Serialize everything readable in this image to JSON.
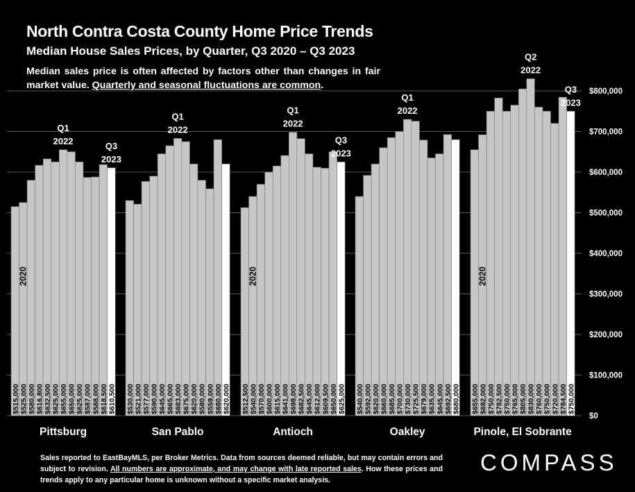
{
  "title": "North Contra Costa County Home Price Trends",
  "subtitle": "Median House Sales Prices, by Quarter, Q3 2020 – Q3 2023",
  "note": {
    "text": "Median sales price is often affected by factors other than changes in fair market value. ",
    "underlined": "Quarterly and seasonal fluctuations are common",
    "end": "."
  },
  "footer": {
    "line1": "Sales reported to EastBayMLS, per Broker Metrics. Data from sources deemed reliable, but may contain errors and subject to revision. ",
    "underlined": "All numbers are approximate, and may change with late reported sales",
    "line2": ". How these prices and trends apply to any particular home is unknown without a specific market analysis."
  },
  "logo": "COMPASS",
  "colors": {
    "background": "#000000",
    "bar": "#c6c6c6",
    "bar_latest": "#ffffff",
    "text": "#ffffff"
  },
  "chart_data": {
    "type": "bar",
    "ylim": [
      0,
      800000
    ],
    "yticks": [
      "$0",
      "$100,000",
      "$200,000",
      "$300,000",
      "$400,000",
      "$500,000",
      "$600,000",
      "$700,000",
      "$800,000"
    ],
    "ytick_values": [
      0,
      100000,
      200000,
      300000,
      400000,
      500000,
      600000,
      700000,
      800000
    ],
    "grid": true,
    "groups": [
      {
        "name": "Pittsburg",
        "values": [
          515000,
          525000,
          580000,
          616800,
          632500,
          625000,
          655000,
          650000,
          625000,
          587000,
          588000,
          618500,
          610500
        ],
        "labels": [
          "$515,000",
          "$525,000",
          "$580,000",
          "$616,800",
          "$632,500",
          "$625,000",
          "$655,000",
          "$650,000",
          "$625,000",
          "$587,000",
          "$588,000",
          "$618,500",
          "$610,500"
        ],
        "start_label": "2020",
        "annotations": [
          {
            "index": 6,
            "lines": [
              "Q1",
              "2022"
            ]
          },
          {
            "index": 12,
            "lines": [
              "Q3",
              "2023"
            ]
          }
        ]
      },
      {
        "name": "San Pablo",
        "values": [
          530000,
          521000,
          577000,
          590000,
          645000,
          665000,
          683000,
          675000,
          620000,
          580000,
          559000,
          680000,
          620000
        ],
        "labels": [
          "$530,000",
          "$521,000",
          "$577,000",
          "$590,000",
          "$645,000",
          "$665,000",
          "$683,000",
          "$675,000",
          "$620,000",
          "$580,000",
          "$559,000",
          "$680,000",
          "$620,000"
        ],
        "start_label": "",
        "annotations": [
          {
            "index": 6,
            "lines": [
              "Q1",
              "2022"
            ]
          }
        ]
      },
      {
        "name": "Antioch",
        "values": [
          512500,
          540000,
          570000,
          600000,
          615000,
          641000,
          698000,
          682500,
          645000,
          612000,
          609500,
          650000,
          625000
        ],
        "labels": [
          "$512,500",
          "$540,000",
          "$570,000",
          "$600,000",
          "$615,000",
          "$641,000",
          "$698,000",
          "$682,500",
          "$645,000",
          "$612,000",
          "$609,500",
          "$650,000",
          "$625,000"
        ],
        "start_label": "2020",
        "annotations": [
          {
            "index": 6,
            "lines": [
              "Q1",
              "2022"
            ]
          },
          {
            "index": 12,
            "lines": [
              "Q3",
              "2023"
            ]
          }
        ]
      },
      {
        "name": "Oakley",
        "values": [
          540000,
          592000,
          620000,
          660000,
          685000,
          700000,
          730000,
          725500,
          679000,
          635000,
          645000,
          692500,
          680000
        ],
        "labels": [
          "$540,000",
          "$592,000",
          "$620,000",
          "$660,000",
          "$685,000",
          "$700,000",
          "$730,000",
          "$725,500",
          "$679,000",
          "$635,000",
          "$645,000",
          "$692,500",
          "$680,000"
        ],
        "start_label": "",
        "annotations": [
          {
            "index": 6,
            "lines": [
              "Q1",
              "2022"
            ]
          }
        ]
      },
      {
        "name": "Pinole, El Sobrante",
        "values": [
          655000,
          692000,
          750000,
          782500,
          750000,
          765000,
          805000,
          830000,
          760000,
          750000,
          720000,
          784500,
          750000
        ],
        "labels": [
          "$655,000",
          "$692,000",
          "$750,000",
          "$782,500",
          "$750,000",
          "$765,000",
          "$805,000",
          "$830,000",
          "$760,000",
          "$750,000",
          "$720,000",
          "$784,500",
          "$750,000"
        ],
        "start_label": "2020",
        "annotations": [
          {
            "index": 7,
            "lines": [
              "Q2",
              "2022"
            ]
          },
          {
            "index": 12,
            "lines": [
              "Q3",
              "2023"
            ]
          }
        ]
      }
    ]
  }
}
